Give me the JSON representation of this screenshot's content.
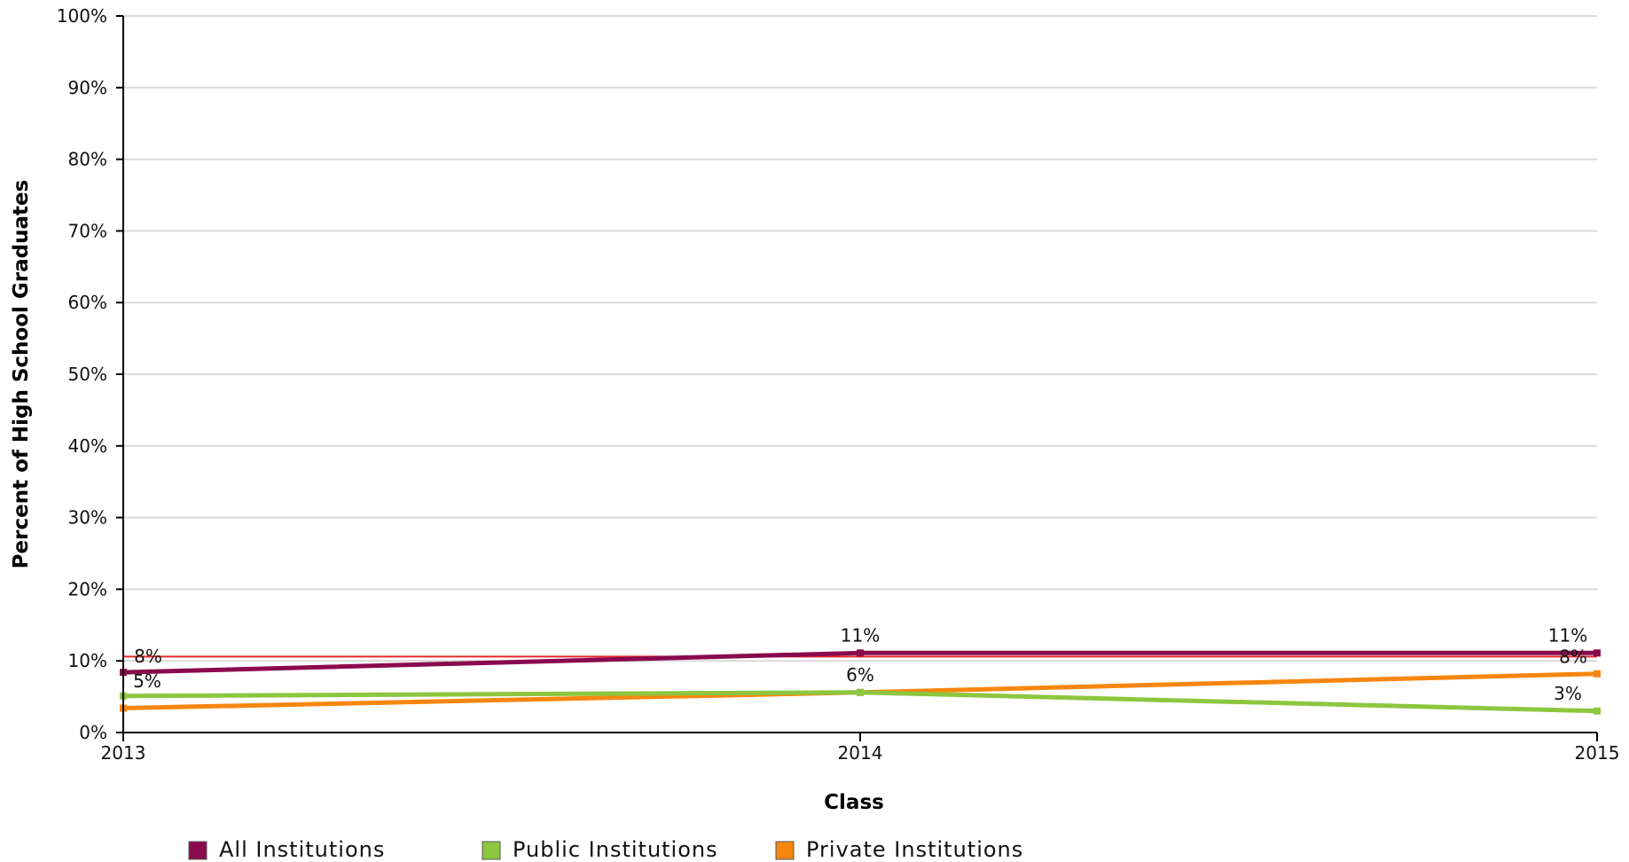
{
  "chart_data": {
    "type": "line",
    "title": "",
    "xlabel": "Class",
    "ylabel": "Percent of High School Graduates",
    "x": [
      "2013",
      "2014",
      "2015"
    ],
    "ylim": [
      0,
      100
    ],
    "yticks": [
      "0%",
      "10%",
      "20%",
      "30%",
      "40%",
      "50%",
      "60%",
      "70%",
      "80%",
      "90%",
      "100%"
    ],
    "grid": true,
    "legend_position": "bottom",
    "series": [
      {
        "name": "All Institutions",
        "color": "#8a0a4e",
        "values": [
          8.4,
          11.1,
          11.1
        ],
        "labels": [
          "8%",
          "11%",
          "11%"
        ]
      },
      {
        "name": "Public Institutions",
        "color": "#8dc63f",
        "values": [
          5.1,
          5.6,
          3.0
        ],
        "labels": [
          "5%",
          "6%",
          "3%"
        ]
      },
      {
        "name": "Private Institutions",
        "color": "#f7860f",
        "values": [
          3.4,
          5.6,
          8.2
        ],
        "labels": [
          "",
          "",
          "8%"
        ]
      }
    ],
    "reference_line": {
      "value": 10.6,
      "color": "#e8262c"
    }
  }
}
